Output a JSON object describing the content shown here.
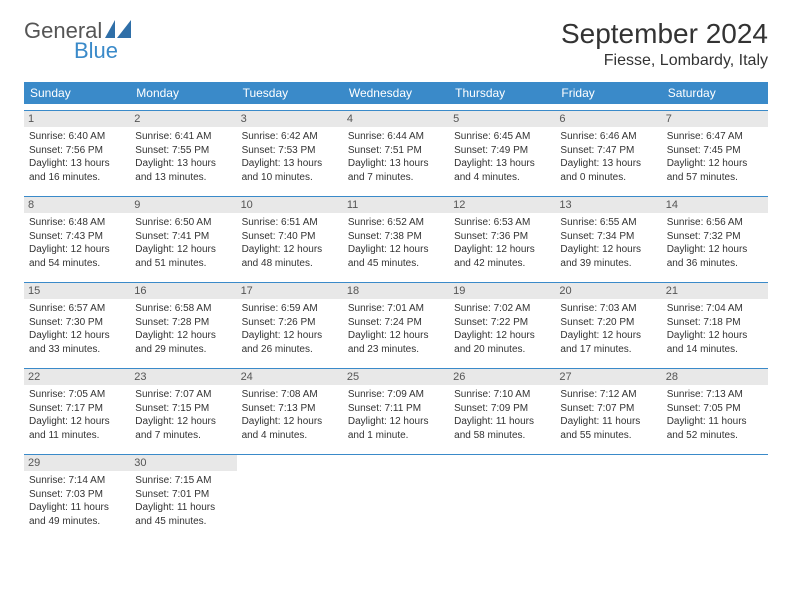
{
  "logo": {
    "text1": "General",
    "text2": "Blue",
    "tri_color": "#2f6fa8"
  },
  "title": "September 2024",
  "location": "Fiesse, Lombardy, Italy",
  "colors": {
    "header_bg": "#3a8ac9",
    "header_text": "#ffffff",
    "daynum_bg": "#e8e8e8",
    "text": "#333333",
    "rule": "#3a8ac9"
  },
  "weekdays": [
    "Sunday",
    "Monday",
    "Tuesday",
    "Wednesday",
    "Thursday",
    "Friday",
    "Saturday"
  ],
  "weeks": [
    [
      {
        "n": "1",
        "sr": "Sunrise: 6:40 AM",
        "ss": "Sunset: 7:56 PM",
        "d1": "Daylight: 13 hours",
        "d2": "and 16 minutes."
      },
      {
        "n": "2",
        "sr": "Sunrise: 6:41 AM",
        "ss": "Sunset: 7:55 PM",
        "d1": "Daylight: 13 hours",
        "d2": "and 13 minutes."
      },
      {
        "n": "3",
        "sr": "Sunrise: 6:42 AM",
        "ss": "Sunset: 7:53 PM",
        "d1": "Daylight: 13 hours",
        "d2": "and 10 minutes."
      },
      {
        "n": "4",
        "sr": "Sunrise: 6:44 AM",
        "ss": "Sunset: 7:51 PM",
        "d1": "Daylight: 13 hours",
        "d2": "and 7 minutes."
      },
      {
        "n": "5",
        "sr": "Sunrise: 6:45 AM",
        "ss": "Sunset: 7:49 PM",
        "d1": "Daylight: 13 hours",
        "d2": "and 4 minutes."
      },
      {
        "n": "6",
        "sr": "Sunrise: 6:46 AM",
        "ss": "Sunset: 7:47 PM",
        "d1": "Daylight: 13 hours",
        "d2": "and 0 minutes."
      },
      {
        "n": "7",
        "sr": "Sunrise: 6:47 AM",
        "ss": "Sunset: 7:45 PM",
        "d1": "Daylight: 12 hours",
        "d2": "and 57 minutes."
      }
    ],
    [
      {
        "n": "8",
        "sr": "Sunrise: 6:48 AM",
        "ss": "Sunset: 7:43 PM",
        "d1": "Daylight: 12 hours",
        "d2": "and 54 minutes."
      },
      {
        "n": "9",
        "sr": "Sunrise: 6:50 AM",
        "ss": "Sunset: 7:41 PM",
        "d1": "Daylight: 12 hours",
        "d2": "and 51 minutes."
      },
      {
        "n": "10",
        "sr": "Sunrise: 6:51 AM",
        "ss": "Sunset: 7:40 PM",
        "d1": "Daylight: 12 hours",
        "d2": "and 48 minutes."
      },
      {
        "n": "11",
        "sr": "Sunrise: 6:52 AM",
        "ss": "Sunset: 7:38 PM",
        "d1": "Daylight: 12 hours",
        "d2": "and 45 minutes."
      },
      {
        "n": "12",
        "sr": "Sunrise: 6:53 AM",
        "ss": "Sunset: 7:36 PM",
        "d1": "Daylight: 12 hours",
        "d2": "and 42 minutes."
      },
      {
        "n": "13",
        "sr": "Sunrise: 6:55 AM",
        "ss": "Sunset: 7:34 PM",
        "d1": "Daylight: 12 hours",
        "d2": "and 39 minutes."
      },
      {
        "n": "14",
        "sr": "Sunrise: 6:56 AM",
        "ss": "Sunset: 7:32 PM",
        "d1": "Daylight: 12 hours",
        "d2": "and 36 minutes."
      }
    ],
    [
      {
        "n": "15",
        "sr": "Sunrise: 6:57 AM",
        "ss": "Sunset: 7:30 PM",
        "d1": "Daylight: 12 hours",
        "d2": "and 33 minutes."
      },
      {
        "n": "16",
        "sr": "Sunrise: 6:58 AM",
        "ss": "Sunset: 7:28 PM",
        "d1": "Daylight: 12 hours",
        "d2": "and 29 minutes."
      },
      {
        "n": "17",
        "sr": "Sunrise: 6:59 AM",
        "ss": "Sunset: 7:26 PM",
        "d1": "Daylight: 12 hours",
        "d2": "and 26 minutes."
      },
      {
        "n": "18",
        "sr": "Sunrise: 7:01 AM",
        "ss": "Sunset: 7:24 PM",
        "d1": "Daylight: 12 hours",
        "d2": "and 23 minutes."
      },
      {
        "n": "19",
        "sr": "Sunrise: 7:02 AM",
        "ss": "Sunset: 7:22 PM",
        "d1": "Daylight: 12 hours",
        "d2": "and 20 minutes."
      },
      {
        "n": "20",
        "sr": "Sunrise: 7:03 AM",
        "ss": "Sunset: 7:20 PM",
        "d1": "Daylight: 12 hours",
        "d2": "and 17 minutes."
      },
      {
        "n": "21",
        "sr": "Sunrise: 7:04 AM",
        "ss": "Sunset: 7:18 PM",
        "d1": "Daylight: 12 hours",
        "d2": "and 14 minutes."
      }
    ],
    [
      {
        "n": "22",
        "sr": "Sunrise: 7:05 AM",
        "ss": "Sunset: 7:17 PM",
        "d1": "Daylight: 12 hours",
        "d2": "and 11 minutes."
      },
      {
        "n": "23",
        "sr": "Sunrise: 7:07 AM",
        "ss": "Sunset: 7:15 PM",
        "d1": "Daylight: 12 hours",
        "d2": "and 7 minutes."
      },
      {
        "n": "24",
        "sr": "Sunrise: 7:08 AM",
        "ss": "Sunset: 7:13 PM",
        "d1": "Daylight: 12 hours",
        "d2": "and 4 minutes."
      },
      {
        "n": "25",
        "sr": "Sunrise: 7:09 AM",
        "ss": "Sunset: 7:11 PM",
        "d1": "Daylight: 12 hours",
        "d2": "and 1 minute."
      },
      {
        "n": "26",
        "sr": "Sunrise: 7:10 AM",
        "ss": "Sunset: 7:09 PM",
        "d1": "Daylight: 11 hours",
        "d2": "and 58 minutes."
      },
      {
        "n": "27",
        "sr": "Sunrise: 7:12 AM",
        "ss": "Sunset: 7:07 PM",
        "d1": "Daylight: 11 hours",
        "d2": "and 55 minutes."
      },
      {
        "n": "28",
        "sr": "Sunrise: 7:13 AM",
        "ss": "Sunset: 7:05 PM",
        "d1": "Daylight: 11 hours",
        "d2": "and 52 minutes."
      }
    ],
    [
      {
        "n": "29",
        "sr": "Sunrise: 7:14 AM",
        "ss": "Sunset: 7:03 PM",
        "d1": "Daylight: 11 hours",
        "d2": "and 49 minutes."
      },
      {
        "n": "30",
        "sr": "Sunrise: 7:15 AM",
        "ss": "Sunset: 7:01 PM",
        "d1": "Daylight: 11 hours",
        "d2": "and 45 minutes."
      },
      null,
      null,
      null,
      null,
      null
    ]
  ]
}
